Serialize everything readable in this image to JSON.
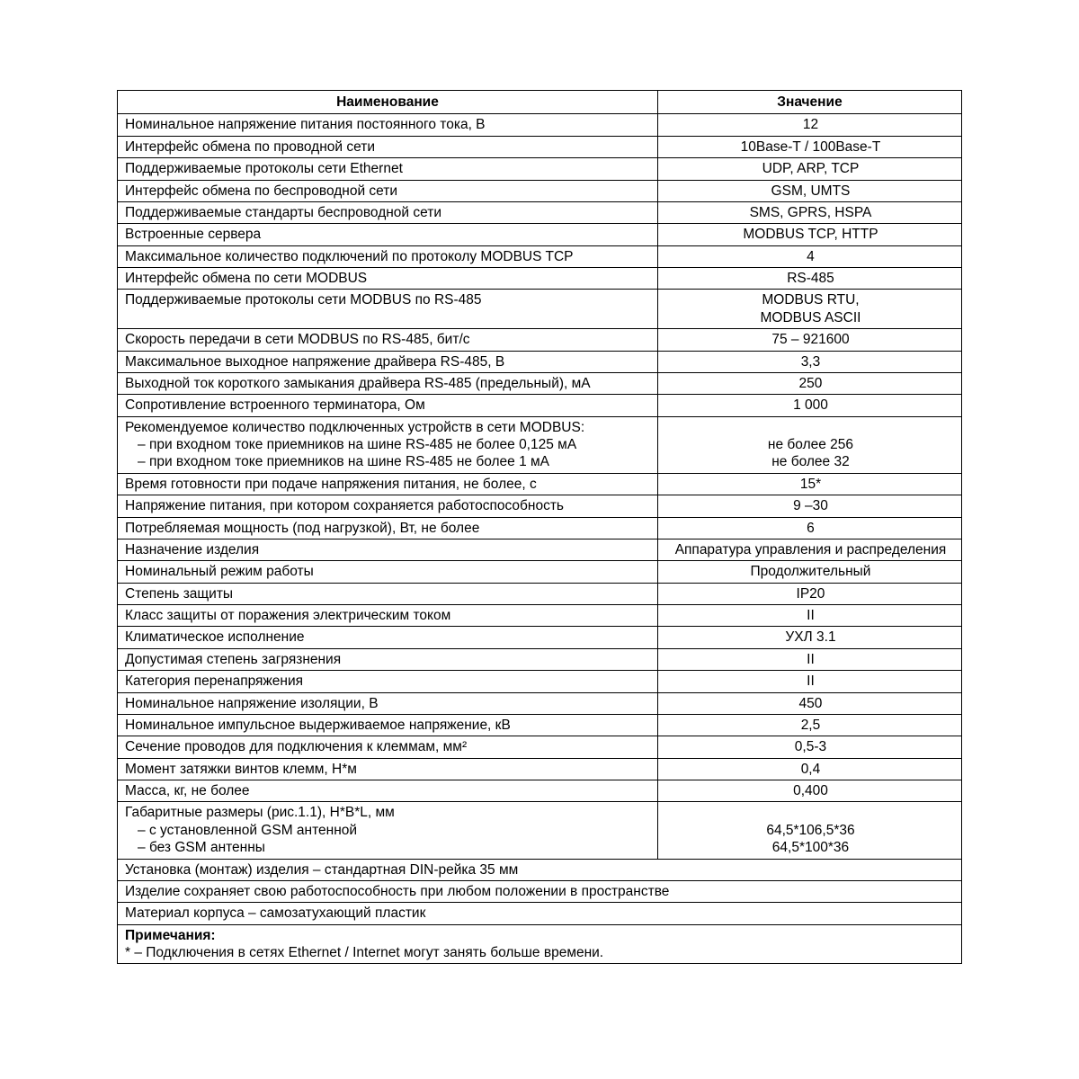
{
  "header": {
    "name": "Наименование",
    "value": "Значение"
  },
  "rows": [
    {
      "n": "Номинальное напряжение питания постоянного тока, В",
      "v": "12"
    },
    {
      "n": "Интерфейс обмена по проводной сети",
      "v": "10Base-T / 100Base-T"
    },
    {
      "n": "Поддерживаемые протоколы сети Ethernet",
      "v": "UDP, ARP, TCP"
    },
    {
      "n": "Интерфейс обмена по беспроводной сети",
      "v": "GSM, UMTS"
    },
    {
      "n": "Поддерживаемые стандарты беспроводной сети",
      "v": "SMS, GPRS, HSPA"
    },
    {
      "n": "Встроенные сервера",
      "v": "MODBUS TCP, HTTP"
    },
    {
      "n": "Максимальное количество подключений по протоколу MODBUS TCP",
      "v": "4"
    },
    {
      "n": "Интерфейс обмена по сети MODBUS",
      "v": "RS-485"
    },
    {
      "n": "Поддерживаемые протоколы сети MODBUS по RS-485",
      "v": "MODBUS RTU,\nMODBUS ASCII"
    },
    {
      "n": "Скорость передачи в сети MODBUS по RS-485, бит/с",
      "v": "75 – 921600"
    },
    {
      "n": "Максимальное выходное напряжение драйвера RS-485, В",
      "v": "3,3"
    },
    {
      "n": "Выходной ток короткого замыкания драйвера RS-485 (предельный), мА",
      "v": "250"
    },
    {
      "n": "Сопротивление встроенного терминатора, Ом",
      "v": "1 000"
    },
    {
      "n": "Рекомендуемое количество подключенных устройств в сети MODBUS:",
      "sub": [
        "при входном токе приемников на шине RS-485 не более 0,125 мА",
        "при входном токе приемников на шине RS-485 не более 1 мА"
      ],
      "v": "\nне более 256\nне более 32"
    },
    {
      "n": "Время готовности при подаче напряжения питания, не более, с",
      "v": "15*"
    },
    {
      "n": "Напряжение питания, при котором сохраняется работоспособность",
      "v": "9 –30"
    },
    {
      "n": "Потребляемая мощность (под нагрузкой), Вт, не более",
      "v": "6"
    },
    {
      "n": "Назначение изделия",
      "v": "Аппаратура управления и распределения"
    },
    {
      "n": "Номинальный режим работы",
      "v": "Продолжительный"
    },
    {
      "n": "Степень защиты",
      "v": "IP20"
    },
    {
      "n": "Класс защиты от поражения электрическим током",
      "v": "II"
    },
    {
      "n": "Климатическое исполнение",
      "v": "УХЛ 3.1"
    },
    {
      "n": "Допустимая степень загрязнения",
      "v": "II"
    },
    {
      "n": "Категория перенапряжения",
      "v": "II"
    },
    {
      "n": "Номинальное напряжение изоляции, В",
      "v": "450"
    },
    {
      "n": "Номинальное импульсное выдерживаемое напряжение, кВ",
      "v": "2,5"
    },
    {
      "n": "Сечение проводов для подключения к клеммам, мм²",
      "v": "0,5-3"
    },
    {
      "n": "Момент затяжки винтов клемм, Н*м",
      "v": "0,4"
    },
    {
      "n": "Масса, кг, не более",
      "v": "0,400"
    },
    {
      "n": "Габаритные размеры (рис.1.1), H*B*L, мм",
      "sub": [
        "с установленной GSM антенной",
        "без GSM антенны"
      ],
      "v": "\n64,5*106,5*36\n64,5*100*36"
    }
  ],
  "fullrows": [
    "Установка (монтаж) изделия – стандартная DIN-рейка 35 мм",
    "Изделие сохраняет свою работоспособность при любом положении в пространстве",
    "Материал корпуса – самозатухающий пластик"
  ],
  "notes": {
    "title": "Примечания:",
    "body": "* – Подключения в сетях Ethernet / Internet могут занять больше времени."
  }
}
